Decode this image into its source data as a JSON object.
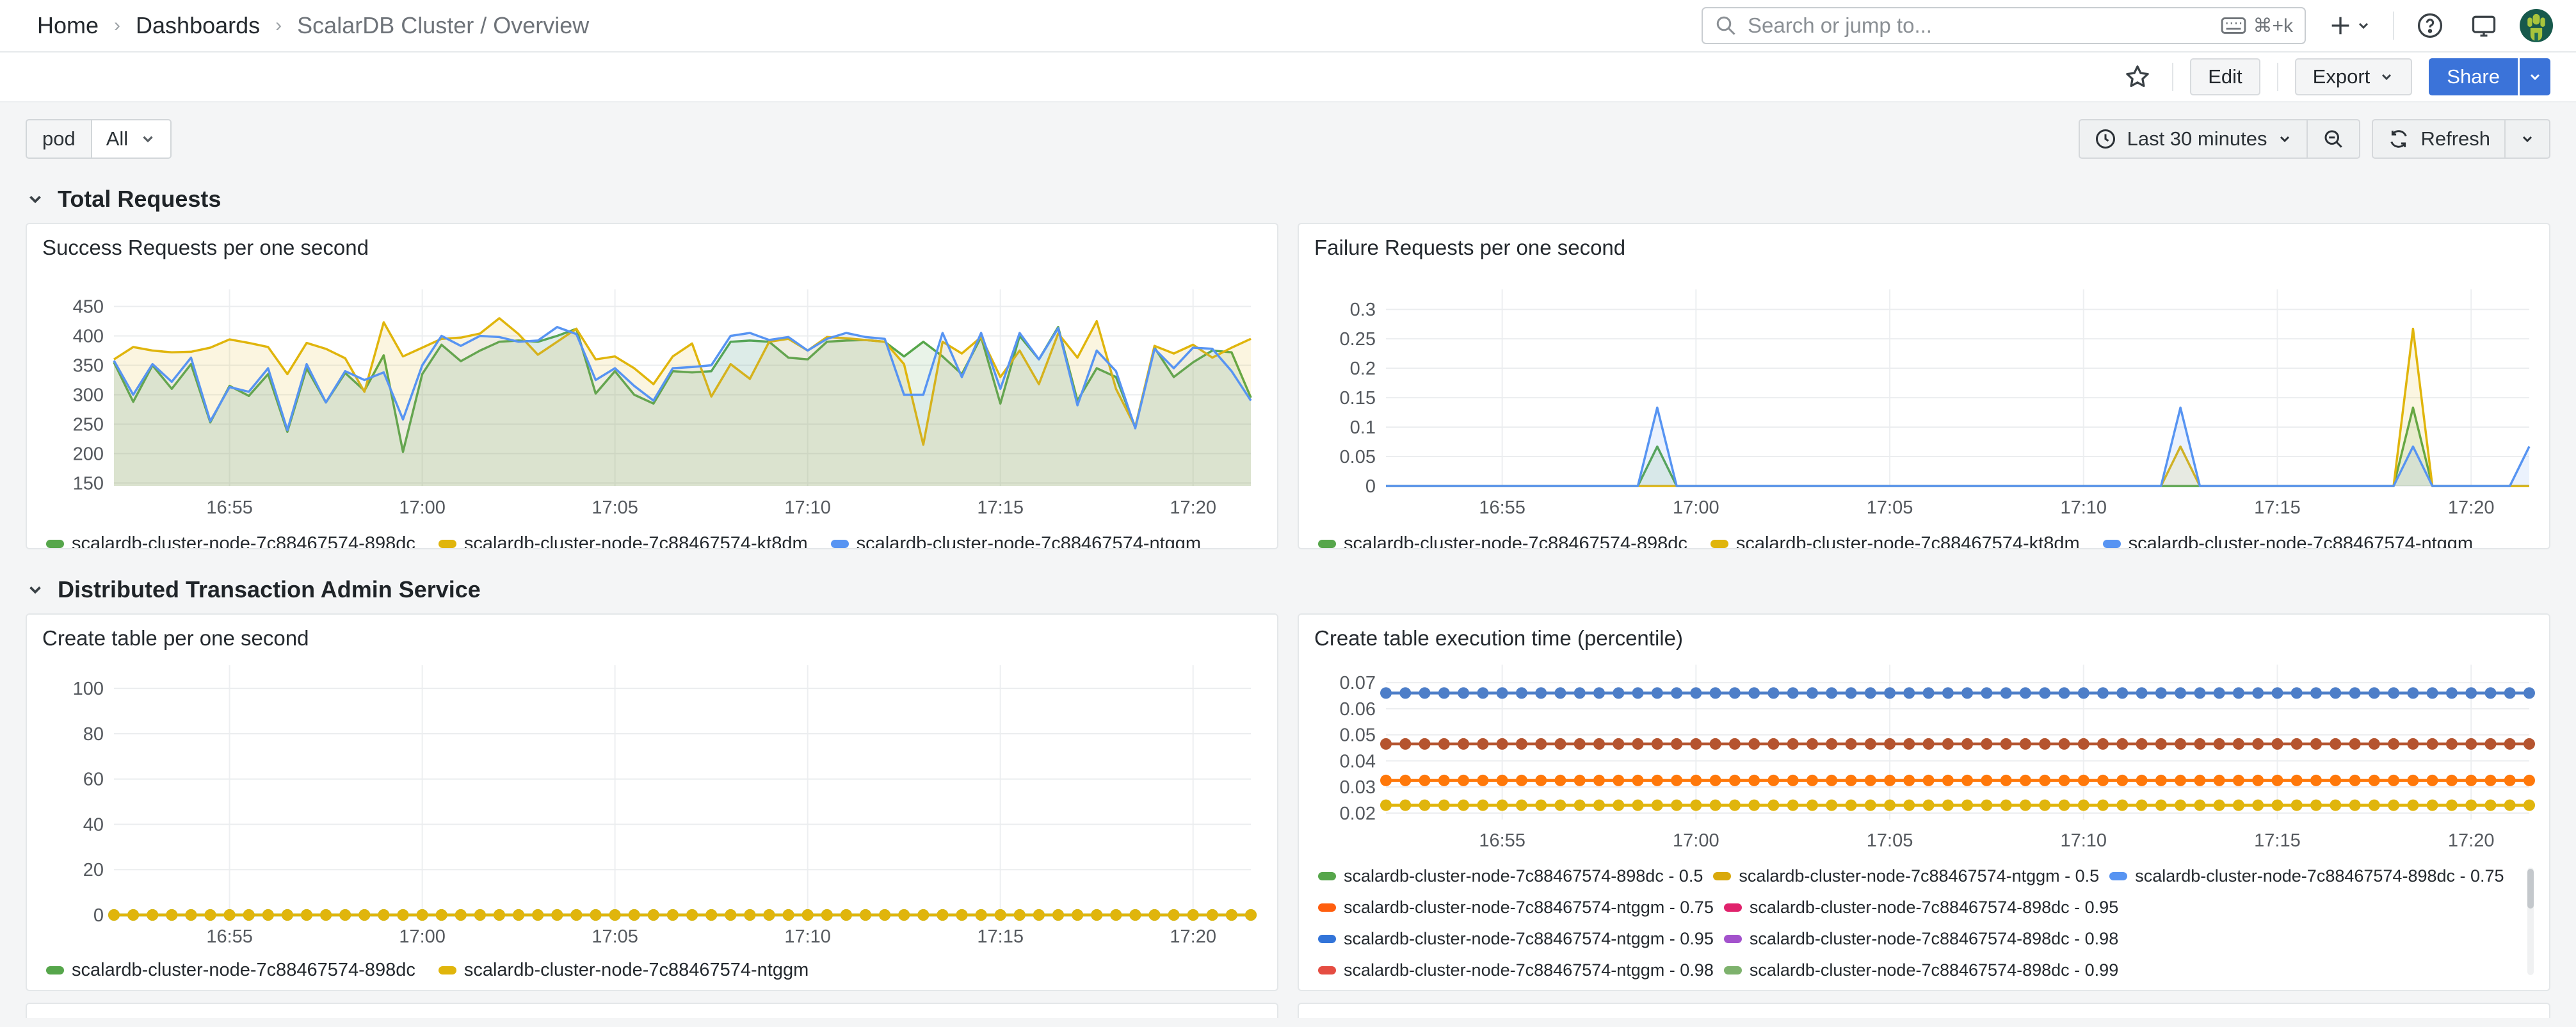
{
  "nav": {
    "breadcrumbs": [
      "Home",
      "Dashboards",
      "ScalarDB Cluster / Overview"
    ],
    "separator": "›",
    "search_placeholder": "Search or jump to...",
    "search_shortcut": "⌘+k"
  },
  "toolbar": {
    "edit": "Edit",
    "export": "Export",
    "share": "Share"
  },
  "controls": {
    "variable_label": "pod",
    "variable_value": "All",
    "time_range": "Last 30 minutes",
    "refresh": "Refresh"
  },
  "sections": {
    "total_requests": "Total Requests",
    "dta_service": "Distributed Transaction Admin Service"
  },
  "panels": {
    "success_title": "Success Requests per one second",
    "failure_title": "Failure Requests per one second",
    "create_table_title": "Create table per one second",
    "percentile_title": "Create table execution time (percentile)"
  },
  "chart_data": [
    {
      "id": "success",
      "type": "line",
      "title": "Success Requests per one second",
      "x_minutes_span": 29.5,
      "x_ticks": [
        {
          "label": "16:55",
          "min": 3
        },
        {
          "label": "17:00",
          "min": 8
        },
        {
          "label": "17:05",
          "min": 13
        },
        {
          "label": "17:10",
          "min": 18
        },
        {
          "label": "17:15",
          "min": 23
        },
        {
          "label": "17:20",
          "min": 28
        }
      ],
      "ylim": [
        145,
        455
      ],
      "y_ticks": [
        {
          "v": 150,
          "l": "150"
        },
        {
          "v": 200,
          "l": "200"
        },
        {
          "v": 250,
          "l": "250"
        },
        {
          "v": 300,
          "l": "300"
        },
        {
          "v": 350,
          "l": "350"
        },
        {
          "v": 400,
          "l": "400"
        },
        {
          "v": 450,
          "l": "450"
        }
      ],
      "series": [
        {
          "name": "scalardb-cluster-node-7c88467574-898dc",
          "color": "#56A64B",
          "fill_opacity": 0.13,
          "values": [
            355,
            288,
            350,
            310,
            352,
            253,
            315,
            298,
            335,
            237,
            345,
            287,
            337,
            307,
            367,
            203,
            335,
            385,
            357,
            375,
            390,
            392,
            390,
            400,
            412,
            302,
            340,
            300,
            285,
            340,
            338,
            340,
            390,
            392,
            390,
            363,
            360,
            390,
            392,
            393,
            390,
            365,
            390,
            365,
            335,
            398,
            285,
            400,
            360,
            415,
            290,
            345,
            330,
            245,
            380,
            330,
            355,
            375,
            372,
            295
          ]
        },
        {
          "name": "scalardb-cluster-node-7c88467574-kt8dm",
          "color": "#E0B50C",
          "fill_opacity": 0.13,
          "values": [
            360,
            381,
            375,
            372,
            373,
            380,
            394,
            388,
            381,
            335,
            388,
            378,
            362,
            305,
            423,
            365,
            380,
            395,
            397,
            404,
            430,
            403,
            368,
            390,
            412,
            360,
            365,
            345,
            318,
            365,
            387,
            297,
            352,
            327,
            390,
            395,
            375,
            398,
            396,
            393,
            390,
            352,
            215,
            390,
            370,
            398,
            330,
            375,
            318,
            404,
            363,
            425,
            310,
            245,
            383,
            370,
            385,
            363,
            380,
            395
          ]
        },
        {
          "name": "scalardb-cluster-node-7c88467574-ntggm",
          "color": "#5794F2",
          "fill_opacity": 0.08,
          "values": [
            358,
            300,
            352,
            322,
            363,
            255,
            313,
            305,
            345,
            240,
            352,
            287,
            340,
            325,
            338,
            258,
            350,
            400,
            383,
            400,
            398,
            390,
            392,
            415,
            403,
            325,
            345,
            315,
            290,
            345,
            347,
            350,
            400,
            405,
            393,
            398,
            375,
            395,
            405,
            398,
            395,
            300,
            300,
            405,
            330,
            405,
            310,
            405,
            360,
            413,
            282,
            375,
            340,
            243,
            378,
            345,
            380,
            378,
            340,
            290
          ]
        }
      ]
    },
    {
      "id": "failure",
      "type": "line",
      "title": "Failure Requests per one second",
      "x_minutes_span": 29.5,
      "x_ticks": [
        {
          "label": "16:55",
          "min": 3
        },
        {
          "label": "17:00",
          "min": 8
        },
        {
          "label": "17:05",
          "min": 13
        },
        {
          "label": "17:10",
          "min": 18
        },
        {
          "label": "17:15",
          "min": 23
        },
        {
          "label": "17:20",
          "min": 28
        }
      ],
      "ylim": [
        0,
        0.31
      ],
      "y_ticks": [
        {
          "v": 0,
          "l": "0"
        },
        {
          "v": 0.05,
          "l": "0.05"
        },
        {
          "v": 0.1,
          "l": "0.1"
        },
        {
          "v": 0.15,
          "l": "0.15"
        },
        {
          "v": 0.2,
          "l": "0.2"
        },
        {
          "v": 0.25,
          "l": "0.25"
        },
        {
          "v": 0.3,
          "l": "0.3"
        }
      ],
      "series": [
        {
          "name": "scalardb-cluster-node-7c88467574-898dc",
          "color": "#56A64B",
          "fill_opacity": 0.12,
          "values": [
            0,
            0,
            0,
            0,
            0,
            0,
            0,
            0,
            0,
            0,
            0,
            0,
            0,
            0,
            0.067,
            0,
            0,
            0,
            0,
            0,
            0,
            0,
            0,
            0,
            0,
            0,
            0,
            0,
            0,
            0,
            0,
            0,
            0,
            0,
            0,
            0,
            0,
            0,
            0,
            0,
            0,
            0,
            0,
            0,
            0,
            0,
            0,
            0,
            0,
            0,
            0,
            0,
            0,
            0.133,
            0,
            0,
            0,
            0,
            0,
            0
          ]
        },
        {
          "name": "scalardb-cluster-node-7c88467574-kt8dm",
          "color": "#E0B50C",
          "fill_opacity": 0.12,
          "values": [
            0,
            0,
            0,
            0,
            0,
            0,
            0,
            0,
            0,
            0,
            0,
            0,
            0,
            0,
            0,
            0,
            0,
            0,
            0,
            0,
            0,
            0,
            0,
            0,
            0,
            0,
            0,
            0,
            0,
            0,
            0,
            0,
            0,
            0,
            0,
            0,
            0,
            0,
            0,
            0,
            0,
            0.067,
            0,
            0,
            0,
            0,
            0,
            0,
            0,
            0,
            0,
            0,
            0,
            0.267,
            0,
            0,
            0,
            0,
            0,
            0
          ]
        },
        {
          "name": "scalardb-cluster-node-7c88467574-ntggm",
          "color": "#5794F2",
          "fill_opacity": 0.12,
          "values": [
            0,
            0,
            0,
            0,
            0,
            0,
            0,
            0,
            0,
            0,
            0,
            0,
            0,
            0,
            0.133,
            0,
            0,
            0,
            0,
            0,
            0,
            0,
            0,
            0,
            0,
            0,
            0,
            0,
            0,
            0,
            0,
            0,
            0,
            0,
            0,
            0,
            0,
            0,
            0,
            0,
            0,
            0.133,
            0,
            0,
            0,
            0,
            0,
            0,
            0,
            0,
            0,
            0,
            0,
            0.067,
            0,
            0,
            0,
            0,
            0,
            0.067
          ]
        }
      ]
    },
    {
      "id": "create_table",
      "type": "line",
      "title": "Create table per one second",
      "x_minutes_span": 29.5,
      "x_ticks": [
        {
          "label": "16:55",
          "min": 3
        },
        {
          "label": "17:00",
          "min": 8
        },
        {
          "label": "17:05",
          "min": 13
        },
        {
          "label": "17:10",
          "min": 18
        },
        {
          "label": "17:15",
          "min": 23
        },
        {
          "label": "17:20",
          "min": 28
        }
      ],
      "ylim": [
        0,
        104
      ],
      "y_ticks": [
        {
          "v": 0,
          "l": "0"
        },
        {
          "v": 20,
          "l": "20"
        },
        {
          "v": 40,
          "l": "40"
        },
        {
          "v": 60,
          "l": "60"
        },
        {
          "v": 80,
          "l": "80"
        },
        {
          "v": 100,
          "l": "100"
        }
      ],
      "points": 60,
      "series": [
        {
          "name": "scalardb-cluster-node-7c88467574-898dc",
          "color": "#56A64B",
          "values_constant": 0,
          "markers": true
        },
        {
          "name": "scalardb-cluster-node-7c88467574-ntggm",
          "color": "#E0B50C",
          "values_constant": 0,
          "markers": true
        }
      ]
    },
    {
      "id": "percentile",
      "type": "line",
      "title": "Create table execution time (percentile)",
      "x_minutes_span": 29.5,
      "x_ticks": [
        {
          "label": "16:55",
          "min": 3
        },
        {
          "label": "17:00",
          "min": 8
        },
        {
          "label": "17:05",
          "min": 13
        },
        {
          "label": "17:10",
          "min": 18
        },
        {
          "label": "17:15",
          "min": 23
        },
        {
          "label": "17:20",
          "min": 28
        }
      ],
      "ylim": [
        0.0175,
        0.0715
      ],
      "y_ticks": [
        {
          "v": 0.02,
          "l": "0.02"
        },
        {
          "v": 0.03,
          "l": "0.03"
        },
        {
          "v": 0.04,
          "l": "0.04"
        },
        {
          "v": 0.05,
          "l": "0.05"
        },
        {
          "v": 0.06,
          "l": "0.06"
        },
        {
          "v": 0.07,
          "l": "0.07"
        }
      ],
      "points": 60,
      "series": [
        {
          "name": "level-0.066",
          "color": "#4D7EC8",
          "values_constant": 0.066,
          "markers": true
        },
        {
          "name": "level-0.0465",
          "color": "#B5542F",
          "values_constant": 0.0465,
          "markers": true
        },
        {
          "name": "level-0.0325",
          "color": "#FF780A",
          "values_constant": 0.0325,
          "markers": true
        },
        {
          "name": "level-0.023",
          "color": "#E0B50C",
          "values_constant": 0.023,
          "markers": true
        }
      ],
      "legend_rows": [
        [
          {
            "color": "#56A64B",
            "label": "scalardb-cluster-node-7c88467574-898dc - 0.5"
          },
          {
            "color": "#D9A90C",
            "label": "scalardb-cluster-node-7c88467574-ntggm - 0.5"
          },
          {
            "color": "#5794F2",
            "label": "scalardb-cluster-node-7c88467574-898dc - 0.75"
          }
        ],
        [
          {
            "color": "#FF5E0E",
            "label": "scalardb-cluster-node-7c88467574-ntggm - 0.75"
          },
          {
            "color": "#E0226C",
            "label": "scalardb-cluster-node-7c88467574-898dc - 0.95"
          }
        ],
        [
          {
            "color": "#3274D9",
            "label": "scalardb-cluster-node-7c88467574-ntggm - 0.95"
          },
          {
            "color": "#A352CC",
            "label": "scalardb-cluster-node-7c88467574-898dc - 0.98"
          }
        ],
        [
          {
            "color": "#E54D42",
            "label": "scalardb-cluster-node-7c88467574-ntggm - 0.98"
          },
          {
            "color": "#7EB26D",
            "label": "scalardb-cluster-node-7c88467574-898dc - 0.99"
          }
        ]
      ]
    }
  ]
}
